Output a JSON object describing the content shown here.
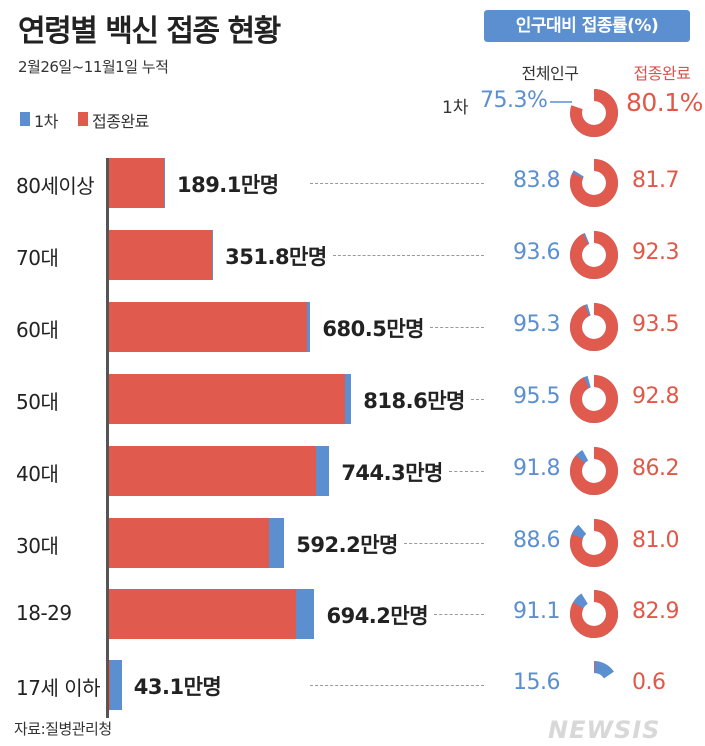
{
  "title": "연령별 백신 접종 현황",
  "badge": "인구대비 접종률(%)",
  "period": "2월26일~11월1일 누적",
  "legend": {
    "first": "1차",
    "complete": "접종완료"
  },
  "headers": {
    "total_population": "전체인구",
    "complete": "접종완료"
  },
  "overall": {
    "label": "1차",
    "first_pct": "75.3%",
    "complete_pct": "80.1%"
  },
  "colors": {
    "first": "#5b8fd0",
    "complete": "#e05a4e",
    "badge": "#5b8fd0"
  },
  "chart_data": {
    "type": "bar",
    "orientation": "horizontal",
    "categories": [
      "80세이상",
      "70대",
      "60대",
      "50대",
      "40대",
      "30대",
      "18-29",
      "17세 이하"
    ],
    "series": [
      {
        "name": "1차",
        "values": [
          189.1,
          351.8,
          680.5,
          818.6,
          744.3,
          592.2,
          694.2,
          43.1
        ],
        "labels": [
          "189.1만명",
          "351.8만명",
          "680.5만명",
          "818.6만명",
          "744.3만명",
          "592.2만명",
          "694.2만명",
          "43.1만명"
        ]
      },
      {
        "name": "접종완료",
        "values": [
          185,
          347,
          669,
          796,
          700,
          540,
          632,
          2
        ]
      }
    ],
    "rate_first": [
      "83.8",
      "93.6",
      "95.3",
      "95.5",
      "91.8",
      "88.6",
      "91.1",
      "15.6"
    ],
    "rate_complete": [
      "81.7",
      "92.3",
      "93.5",
      "92.8",
      "86.2",
      "81.0",
      "82.9",
      "0.6"
    ]
  },
  "source": "자료:질병관리청",
  "watermark": "NEWSIS"
}
